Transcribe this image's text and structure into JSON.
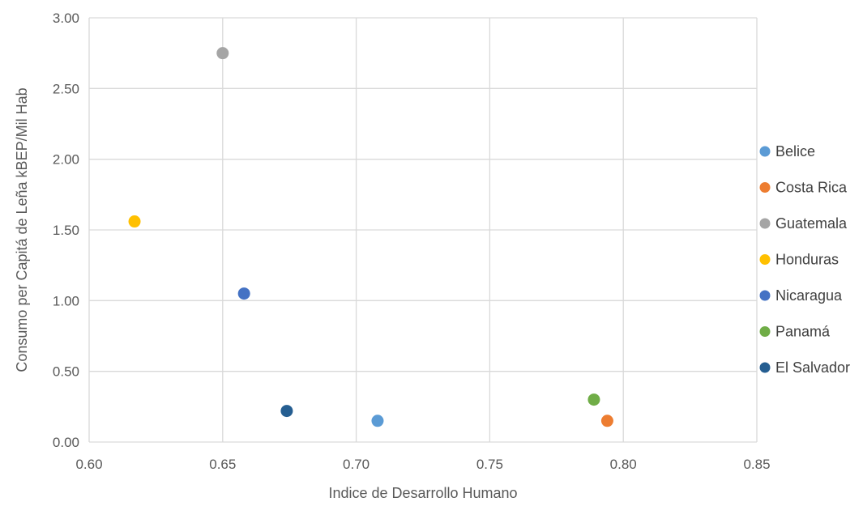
{
  "chart_data": {
    "type": "scatter",
    "title": "",
    "xlabel": "Indice de Desarrollo Humano",
    "ylabel": "Consumo per Capitá de Leña kBEP/Mil Hab",
    "xlim": [
      0.6,
      0.85
    ],
    "ylim": [
      0.0,
      3.0
    ],
    "x_ticks": [
      "0.60",
      "0.65",
      "0.70",
      "0.75",
      "0.80",
      "0.85"
    ],
    "y_ticks": [
      "0.00",
      "0.50",
      "1.00",
      "1.50",
      "2.00",
      "2.50",
      "3.00"
    ],
    "grid": "vertical and horizontal",
    "legend_position": "right",
    "series": [
      {
        "name": "Belice",
        "color": "#5B9BD5",
        "x": 0.708,
        "y": 0.15
      },
      {
        "name": "Costa Rica",
        "color": "#ED7D31",
        "x": 0.794,
        "y": 0.15
      },
      {
        "name": "Guatemala",
        "color": "#A5A5A5",
        "x": 0.65,
        "y": 2.75
      },
      {
        "name": "Honduras",
        "color": "#FFC000",
        "x": 0.617,
        "y": 1.56
      },
      {
        "name": "Nicaragua",
        "color": "#4472C4",
        "x": 0.658,
        "y": 1.05
      },
      {
        "name": "Panamá",
        "color": "#70AD47",
        "x": 0.789,
        "y": 0.3
      },
      {
        "name": "El Salvador",
        "color": "#255E91",
        "x": 0.674,
        "y": 0.22
      }
    ]
  }
}
